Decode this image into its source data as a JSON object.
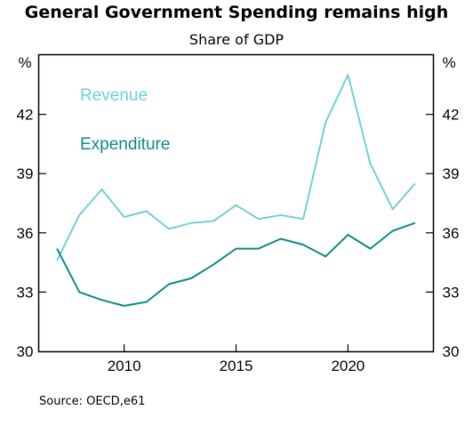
{
  "chart_data": {
    "type": "line",
    "title": "General Government Spending remains high",
    "subtitle": "Share of GDP",
    "unit": "%",
    "xlim": [
      2006.2,
      2023.8
    ],
    "ylim": [
      30,
      45
    ],
    "x_ticks": [
      2010,
      2015,
      2020
    ],
    "y_ticks": [
      30,
      33,
      36,
      39,
      42
    ],
    "grid": false,
    "legend": "inline labels, top-left",
    "x": [
      2007,
      2008,
      2009,
      2010,
      2011,
      2012,
      2013,
      2014,
      2015,
      2016,
      2017,
      2018,
      2019,
      2020,
      2021,
      2022,
      2023
    ],
    "series": [
      {
        "name": "Revenue",
        "color": "#6fd0d8",
        "values": [
          34.6,
          36.9,
          38.2,
          36.8,
          37.1,
          36.2,
          36.5,
          36.6,
          37.4,
          36.7,
          36.9,
          36.7,
          41.6,
          44.0,
          39.5,
          37.2,
          38.5
        ]
      },
      {
        "name": "Expenditure",
        "color": "#0d8a82",
        "values": [
          35.2,
          33.0,
          32.6,
          32.3,
          32.5,
          33.4,
          33.7,
          34.4,
          35.2,
          35.2,
          35.7,
          35.4,
          34.8,
          35.9,
          35.2,
          36.1,
          36.5
        ]
      }
    ],
    "source": "Source: OECD,e61"
  }
}
